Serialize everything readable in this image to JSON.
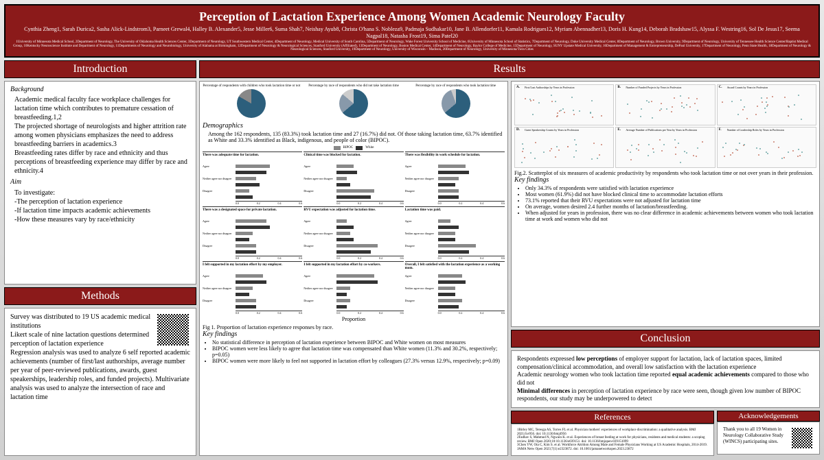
{
  "header": {
    "title": "Perception of Lactation Experience Among Women Academic Neurology Faculty",
    "authors": "Cynthia Zheng1, Sarah Durica2, Sasha Alick-Lindstrom3, Parneet Grewal4, Halley B. Alexander5, Jesse Miller6, Suma Shah7, Neishay Ayub8, Christa O'hana S. Nobleza9, Padmaja Sudhakar10, Jane B. Allendorfer11, Kamala Rodrigues12, Myriam Abennadher13, Doris H. Kung14, Deborah Bradshaw15, Alyssa F. Westring16, Sol De Jesus17, Seema Nagpal18, Natasha Frost19, Sima Patel20",
    "affiliations": "1University of Minnesota Medical School, 2Department of Neurology, The University of Oklahoma Health Sciences Center, 3Department of Neurology, UT Southwestern Medical Center, 4Department of Neurology, Medical University of South Carolina, 5Department of Neurology, Wake Forest University School of Medicine, 6University of Minnesota School of Statistics, 7Department of Neurology, Duke University Medical Center, 8Department of Neurology, Brown University, 9Department of Neurology, University of Tennessee Health Science Center/Baptist Medical Group, 10Kentucky Neuroscience Institute and Department of Neurology, 11Departments of Neurology and Neurobiology, University of Alabama at Birmingham, 12Department of Neurology & Neurological Sciences, Stanford University (Affiliated), 13Department of Neurology, Boston Medical Center, 14Department of Neurology, Baylor College of Medicine, 15Department of Neurology, SUNY Upstate Medical University, 16Department of Management & Entrepreneurship, DePaul University, 17Department of Neurology, Penn State Health, 18Department of Neurology & Neurological Sciences, Stanford University, 19Department of Neurology, University of Wisconsin – Madison, 20Department of Neurology, University of Minnesota/Twin Cities"
  },
  "intro": {
    "header": "Introduction",
    "bg_label": "Background",
    "bg_text": "Academic medical faculty face workplace challenges for lactation time which contributes to premature cessation of breastfeeding.1,2\nThe projected shortage of neurologists and higher attrition rate among women physicians emphasizes the need to address breastfeeding barriers in academics.3\nBreastfeeding rates differ by race and ethnicity and thus perceptions of breastfeeding experience may differ by race and ethnicity.4",
    "aim_label": "Aim",
    "aim_text": "To investigate:\n-The perception of lactation experience\n-If lactation time impacts academic achievements\n-How these measures vary by race/ethnicity"
  },
  "methods": {
    "header": "Methods",
    "text": "Survey was distributed to 19 US academic medical institutions\nLikert scale of nine lactation questions determined perception of lactation experience\nRegression analysis was used to analyze 6 self reported academic achievements (number of first/last authorships, average number per year of peer-reviewed publications, awards, guest speakerships, leadership roles, and funded projects). Multivariate analysis was used to analyze the intersection of race and lactation time"
  },
  "results": {
    "header": "Results",
    "pie_titles": [
      "Percentage of respondents with children who took lactation time or not",
      "Percentage by race of respondents who did not take lactation time",
      "Percentage by race of respondents who took lactation time"
    ],
    "pie_colors": {
      "main": "#2c5f7c",
      "alt": "#8899aa"
    },
    "demo_label": "Demographics",
    "demo_text": "Among the 162 respondents, 135 (83.3%) took lactation time and 27 (16.7%) did not. Of those taking lactation time, 63.7% identified as White and 33.3% identified as Black, indigenous, and people of color (BIPOC).",
    "legend": {
      "b": "BIPOC",
      "w": "White",
      "b_color": "#888888",
      "w_color": "#333333"
    },
    "bar_panels": [
      "There was adequate time for lactation.",
      "Clinical time was blocked for lactation.",
      "There was flexibility in work schedule for lactation.",
      "There was a designated space for private lactation.",
      "RVU expectation was adjusted for lactation time.",
      "Lactation time was paid.",
      "I felt supported in my lactation effort by my employer.",
      "I felt supported in my lactation effort by co-workers.",
      "Overall, I felt satisfied with the lactation experience as a working mom."
    ],
    "bar_levels": [
      "Agree",
      "Neither agree nor disagree",
      "Disagree"
    ],
    "bar_xlabel": "Proportion",
    "bar_ticks": [
      "0.0",
      "0.2",
      "0.4",
      "0.6"
    ],
    "fig1_caption": "Fig 1. Proportion of lactation experience responses by race.",
    "fig1_kf_label": "Key findings",
    "fig1_findings": [
      "No statistical difference in perception of lactation experience between BIPOC and White women on most measures",
      "BIPOC women were less likely to agree that lactation time was compensated than White women (11.3% and 30.2%, respectively; p=0.05)",
      "BIPOC women were more likely to feel not supported in lactation effort by colleagues (27.3% versus 12.9%, respectively; p=0.09)"
    ],
    "scatter": {
      "labels": [
        "A.",
        "B.",
        "C.",
        "D.",
        "E.",
        "F."
      ],
      "titles": [
        "First/Last Authorships by Years in Profession",
        "Number of Funded Projects by Years in Profession",
        "Award Counts by Years in Profession",
        "Guest Speakership Counts by Years in Profession",
        "Average Number of Publications per Year by Years in Profession",
        "Number of Leadership Roles by Years in Profession"
      ],
      "dot_colors": [
        "#6fa8a8",
        "#c97d6b"
      ]
    },
    "fig2_caption": "Fig.2. Scatterplot of six measures of academic productivity by respondents who took lactation time or not over years in their profession.",
    "fig2_kf_label": "Key findings",
    "fig2_findings": [
      "Only 34.3% of respondents were satisfied with lactation experience",
      "Most women (61.9%) did not have blocked clinical time to accommodate lactation efforts",
      "73.1% reported that their RVU expectations were not adjusted for lactation time",
      "On average, women desired 2.4 further months of lactation/breastfeeding.",
      "When adjusted for years in profession, there was no clear difference in academic achievements between women who took lactation time at work and women who did not"
    ]
  },
  "conclusion": {
    "header": "Conclusion",
    "text": "Respondents expressed low perceptions of employer support for lactation, lack of lactation spaces, limited compensation/clinical accommodation, and overall low satisfaction with the lactation experience\nAcademic neurology women who took lactation time reported equal academic achievements compared to those who did not\nMinimal differences in perception of lactation experience by race were seen, though given low number of BIPOC respondents, our study may be underpowered to detect"
  },
  "refs": {
    "header": "References",
    "text": "1Birley MC, Teresga AS, Torres FL et al. Physician mothers' experiences of workplace discrimination: a qualitative analysis. BMJ 2021;6:e956. doi: 10.1136/bmj4956\n2Fadhav S, Mahmud N, Ngwain K. et al. Experiences of breast feeding at work for physicians, residents and medical students: a scoping review. BMJ Open 2020;10:10.1136/e039151. doi: 10.1136/bmjopen-039151099\n3Chen YW, Ota C, Kim S. et al. Workforce Attrition Among Male and Female Physicians Working at US Academic Hospitals, 2014-2019. JAMA Netw Open 2023;7(1):e2323872. doi: 10.1001/jamanetworkopen.2023.23872"
  },
  "ack": {
    "header": "Acknowledgements",
    "text": "Thank you to all 19 Women in Neurology Collaborative Study (WINCS) participating sites."
  }
}
